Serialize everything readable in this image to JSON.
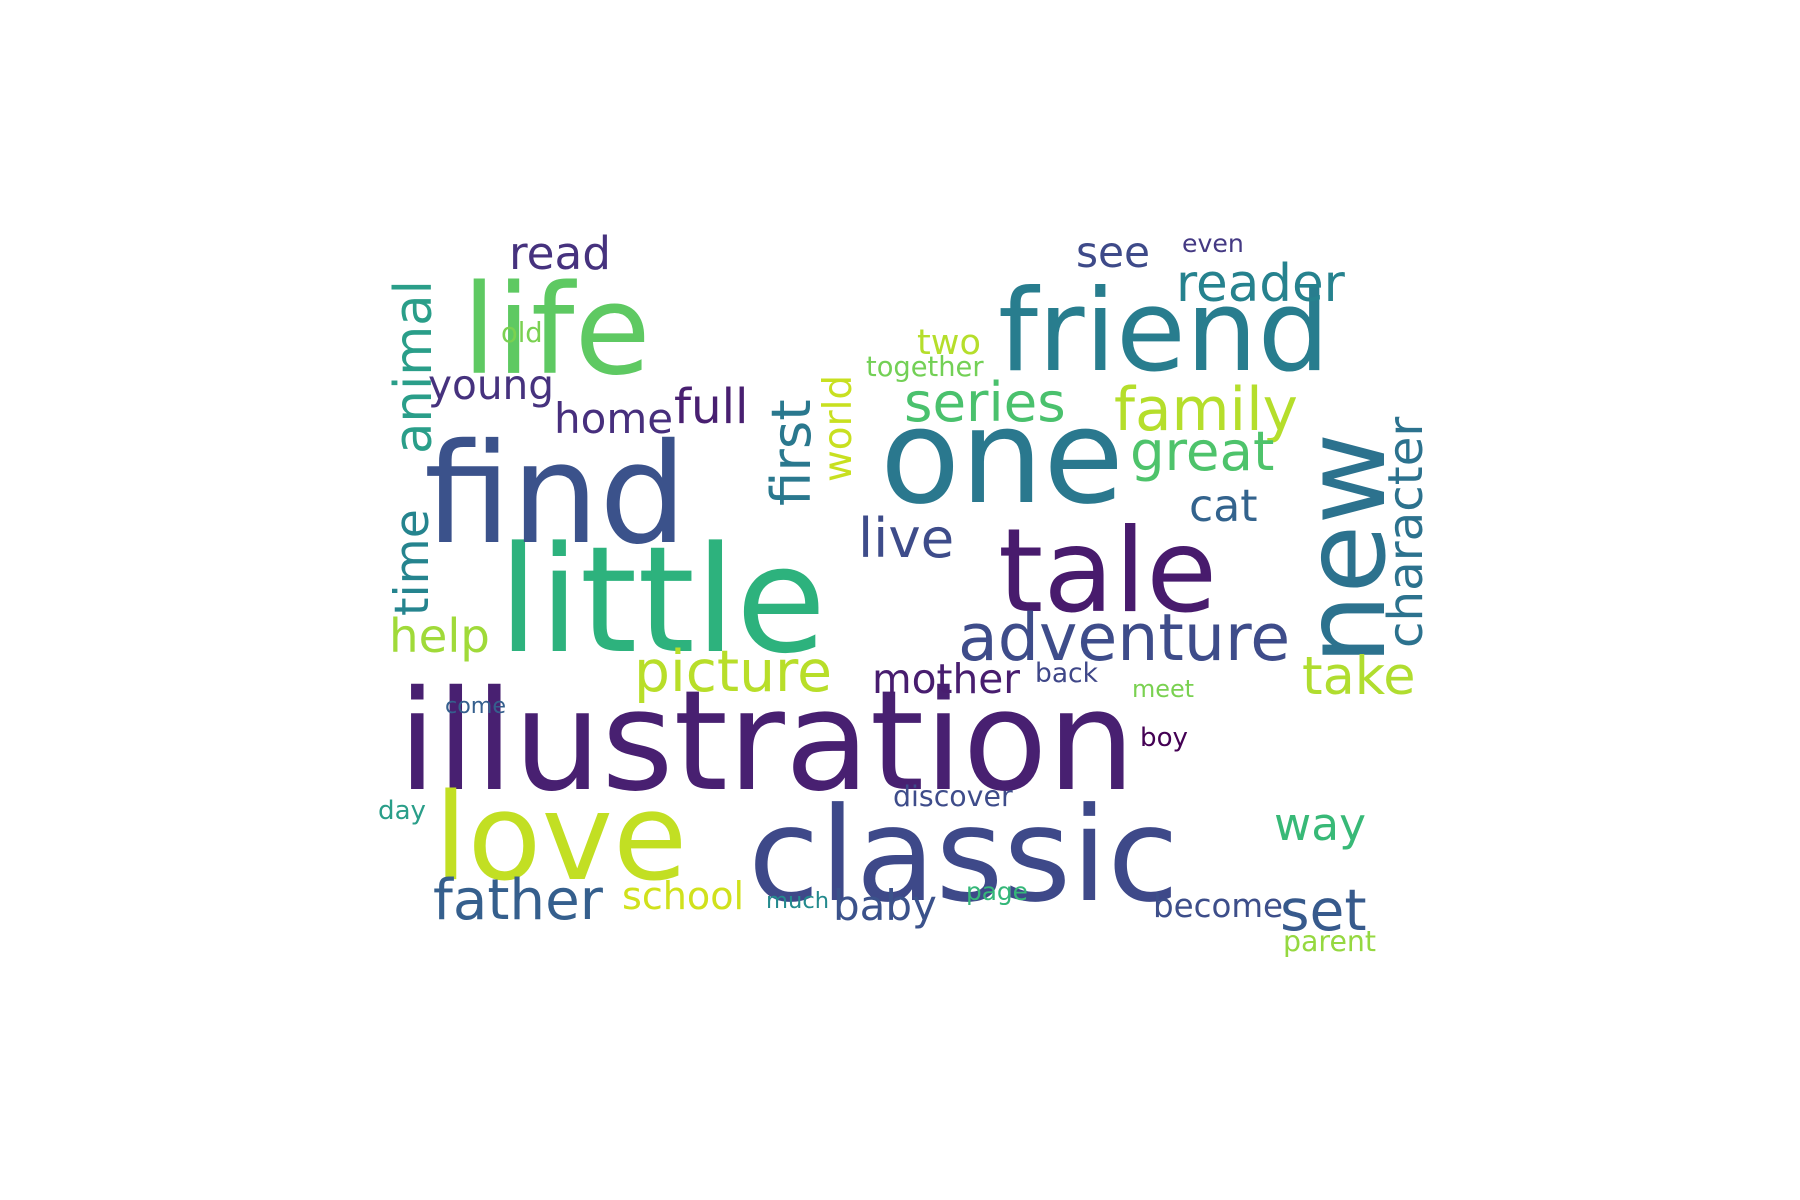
{
  "words": [
    {
      "text": "illustration",
      "color": "#482071"
    },
    {
      "text": "classic",
      "color": "#3e4989"
    },
    {
      "text": "little",
      "color": "#2db27d"
    },
    {
      "text": "find",
      "color": "#3b528b"
    },
    {
      "text": "one",
      "color": "#2a788e"
    },
    {
      "text": "friend",
      "color": "#287d8e"
    },
    {
      "text": "tale",
      "color": "#481b6d"
    },
    {
      "text": "new",
      "color": "#2c728e"
    },
    {
      "text": "life",
      "color": "#5ec962"
    },
    {
      "text": "love",
      "color": "#c2df23"
    },
    {
      "text": "adventure",
      "color": "#3e4c8a"
    },
    {
      "text": "first",
      "color": "#2a788e"
    },
    {
      "text": "character",
      "color": "#2c728e"
    },
    {
      "text": "animal",
      "color": "#2a9e89"
    },
    {
      "text": "picture",
      "color": "#b8de29"
    },
    {
      "text": "family",
      "color": "#b5de2b"
    },
    {
      "text": "series",
      "color": "#4ac16d"
    },
    {
      "text": "great",
      "color": "#4ec36b"
    },
    {
      "text": "reader",
      "color": "#26828e"
    },
    {
      "text": "time",
      "color": "#25848e"
    },
    {
      "text": "world",
      "color": "#c8e020"
    },
    {
      "text": "home",
      "color": "#472f7d"
    },
    {
      "text": "full",
      "color": "#481f70"
    },
    {
      "text": "young",
      "color": "#46327e"
    },
    {
      "text": "live",
      "color": "#3e4c8a"
    },
    {
      "text": "help",
      "color": "#a0da39"
    },
    {
      "text": "take",
      "color": "#b0dd2f"
    },
    {
      "text": "mother",
      "color": "#481d6f"
    },
    {
      "text": "father",
      "color": "#355f8d"
    },
    {
      "text": "set",
      "color": "#375a8c"
    },
    {
      "text": "way",
      "color": "#38b977"
    },
    {
      "text": "baby",
      "color": "#3b528b"
    },
    {
      "text": "school",
      "color": "#d0e11c"
    },
    {
      "text": "read",
      "color": "#46327e"
    },
    {
      "text": "see",
      "color": "#3e4a89"
    },
    {
      "text": "cat",
      "color": "#33638d"
    },
    {
      "text": "two",
      "color": "#b5de2b"
    },
    {
      "text": "become",
      "color": "#3d4e8a"
    },
    {
      "text": "together",
      "color": "#73d056"
    },
    {
      "text": "old",
      "color": "#7ad151"
    },
    {
      "text": "even",
      "color": "#443983"
    },
    {
      "text": "back",
      "color": "#3f4788"
    },
    {
      "text": "meet",
      "color": "#7ad151"
    },
    {
      "text": "come",
      "color": "#355f8d"
    },
    {
      "text": "boy",
      "color": "#440154"
    },
    {
      "text": "discover",
      "color": "#3e4c8a"
    },
    {
      "text": "day",
      "color": "#2a9e89"
    },
    {
      "text": "much",
      "color": "#238a8d"
    },
    {
      "text": "page",
      "color": "#35b779"
    },
    {
      "text": "parent",
      "color": "#95d840"
    }
  ]
}
